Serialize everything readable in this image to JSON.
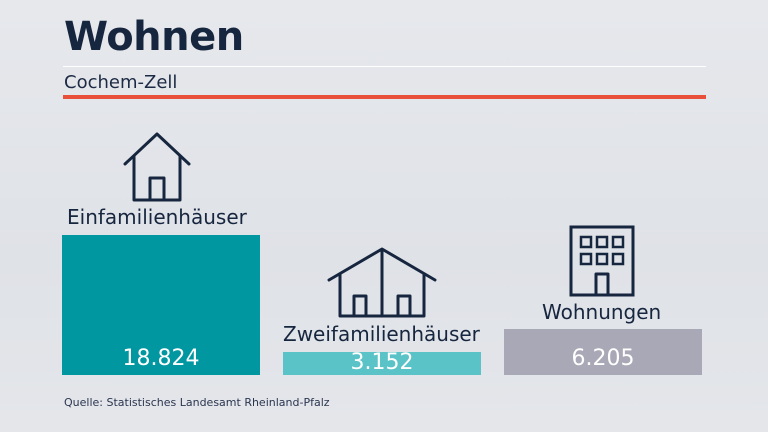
{
  "header": {
    "title": "Wohnen",
    "subtitle": "Cochem-Zell"
  },
  "source": "Quelle: Statistisches Landesamt Rheinland-Pfalz",
  "colors": {
    "accent_rule": "#e8503a"
  },
  "chart_data": {
    "type": "bar",
    "title": "Wohnen",
    "subtitle": "Cochem-Zell",
    "categories": [
      "Einfamilienhäuser",
      "Zweifamilienhäuser",
      "Wohnungen"
    ],
    "values": [
      18824,
      3152,
      6205
    ],
    "value_labels": [
      "18.824",
      "3.152",
      "6.205"
    ],
    "colors": [
      "#0097a1",
      "#5ac3c7",
      "#a9a8b6"
    ],
    "icons": [
      "house-icon",
      "double-house-icon",
      "apartment-building-icon"
    ],
    "grid": false
  }
}
